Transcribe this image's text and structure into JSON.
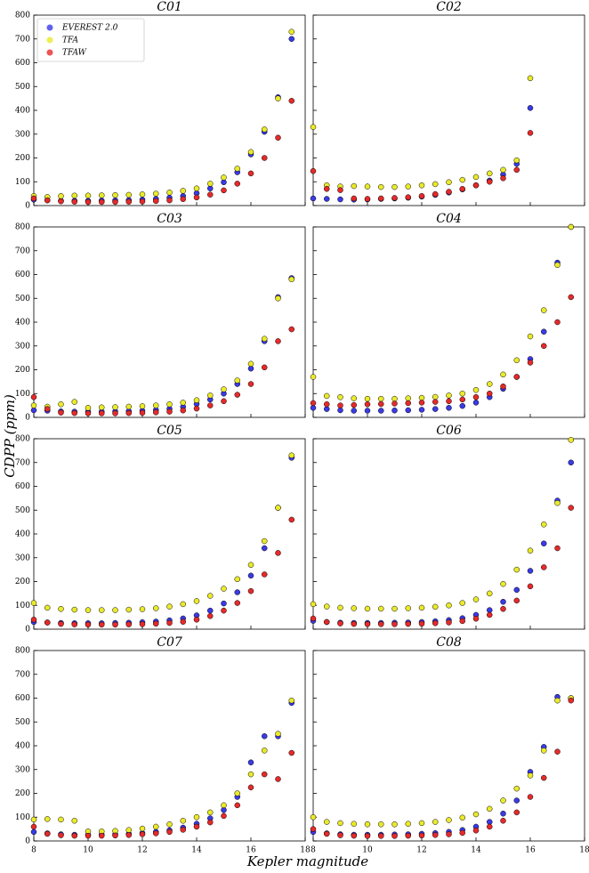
{
  "chart_data": [
    {
      "type": "scatter",
      "title": "C01",
      "xlim": [
        8,
        18
      ],
      "ylim": [
        0,
        800
      ],
      "x": [
        8,
        8.5,
        9,
        9.5,
        10,
        10.5,
        11,
        11.5,
        12,
        12.5,
        13,
        13.5,
        14,
        14.5,
        15,
        15.5,
        16,
        16.5,
        17,
        17.5
      ],
      "series": [
        {
          "name": "EVEREST 2.0",
          "color": "#3a3ae6",
          "values": [
            25,
            22,
            20,
            20,
            20,
            21,
            22,
            23,
            25,
            28,
            33,
            40,
            52,
            72,
            98,
            140,
            215,
            310,
            455,
            700
          ]
        },
        {
          "name": "TFA",
          "color": "#eaea2a",
          "values": [
            40,
            36,
            40,
            42,
            42,
            43,
            44,
            45,
            47,
            50,
            55,
            62,
            72,
            92,
            118,
            155,
            225,
            320,
            450,
            730
          ]
        },
        {
          "name": "TFAW",
          "color": "#e62a2a",
          "values": [
            30,
            22,
            18,
            16,
            15,
            15,
            15,
            16,
            17,
            19,
            22,
            27,
            34,
            46,
            64,
            92,
            135,
            200,
            285,
            440
          ]
        }
      ]
    },
    {
      "type": "scatter",
      "title": "C02",
      "xlim": [
        8,
        18
      ],
      "ylim": [
        0,
        800
      ],
      "x": [
        8,
        8.5,
        9,
        9.5,
        10,
        10.5,
        11,
        11.5,
        12,
        12.5,
        13,
        13.5,
        14,
        14.5,
        15,
        15.5,
        16
      ],
      "series": [
        {
          "color": "#3a3ae6",
          "values": [
            30,
            28,
            26,
            25,
            26,
            28,
            30,
            33,
            38,
            45,
            55,
            68,
            85,
            105,
            130,
            175,
            410
          ]
        },
        {
          "color": "#eaea2a",
          "values": [
            330,
            85,
            80,
            82,
            80,
            78,
            78,
            80,
            85,
            90,
            98,
            108,
            120,
            135,
            150,
            190,
            535
          ]
        },
        {
          "color": "#e62a2a",
          "values": [
            145,
            70,
            65,
            30,
            28,
            30,
            32,
            35,
            40,
            48,
            58,
            70,
            85,
            100,
            115,
            150,
            305
          ]
        }
      ]
    },
    {
      "type": "scatter",
      "title": "C03",
      "xlim": [
        8,
        18
      ],
      "ylim": [
        0,
        800
      ],
      "x": [
        8,
        8.5,
        9,
        9.5,
        10,
        10.5,
        11,
        11.5,
        12,
        12.5,
        13,
        13.5,
        14,
        14.5,
        15,
        15.5,
        16,
        16.5,
        17,
        17.5
      ],
      "series": [
        {
          "color": "#3a3ae6",
          "values": [
            30,
            28,
            25,
            24,
            24,
            24,
            25,
            26,
            28,
            31,
            36,
            44,
            56,
            75,
            100,
            140,
            205,
            320,
            505,
            585
          ]
        },
        {
          "color": "#eaea2a",
          "values": [
            50,
            45,
            55,
            65,
            40,
            42,
            43,
            45,
            47,
            50,
            55,
            62,
            72,
            92,
            118,
            155,
            225,
            330,
            500,
            580
          ]
        },
        {
          "color": "#e62a2a",
          "values": [
            85,
            35,
            20,
            18,
            17,
            17,
            17,
            18,
            19,
            21,
            24,
            29,
            37,
            50,
            68,
            95,
            140,
            210,
            320,
            370
          ]
        }
      ]
    },
    {
      "type": "scatter",
      "title": "C04",
      "xlim": [
        8,
        18
      ],
      "ylim": [
        0,
        800
      ],
      "x": [
        8,
        8.5,
        9,
        9.5,
        10,
        10.5,
        11,
        11.5,
        12,
        12.5,
        13,
        13.5,
        14,
        14.5,
        15,
        15.5,
        16,
        16.5,
        17,
        17.5
      ],
      "series": [
        {
          "color": "#3a3ae6",
          "values": [
            40,
            35,
            30,
            28,
            28,
            28,
            29,
            30,
            32,
            35,
            40,
            48,
            62,
            85,
            120,
            170,
            245,
            360,
            650,
            800
          ]
        },
        {
          "color": "#eaea2a",
          "values": [
            170,
            90,
            85,
            80,
            78,
            78,
            78,
            80,
            82,
            86,
            92,
            100,
            115,
            140,
            180,
            240,
            340,
            450,
            640,
            800
          ]
        },
        {
          "color": "#e62a2a",
          "values": [
            60,
            55,
            50,
            52,
            55,
            56,
            58,
            60,
            62,
            65,
            68,
            75,
            85,
            100,
            130,
            170,
            230,
            300,
            400,
            505
          ]
        }
      ]
    },
    {
      "type": "scatter",
      "title": "C05",
      "xlim": [
        8,
        18
      ],
      "ylim": [
        0,
        800
      ],
      "x": [
        8,
        8.5,
        9,
        9.5,
        10,
        10.5,
        11,
        11.5,
        12,
        12.5,
        13,
        13.5,
        14,
        14.5,
        15,
        15.5,
        16,
        16.5,
        17,
        17.5
      ],
      "series": [
        {
          "color": "#3a3ae6",
          "values": [
            30,
            28,
            26,
            25,
            25,
            25,
            26,
            27,
            29,
            32,
            37,
            45,
            58,
            78,
            108,
            155,
            225,
            340,
            510,
            720
          ]
        },
        {
          "color": "#eaea2a",
          "values": [
            110,
            90,
            85,
            82,
            80,
            80,
            80,
            82,
            84,
            88,
            95,
            105,
            118,
            140,
            170,
            210,
            270,
            370,
            510,
            730
          ]
        },
        {
          "color": "#e62a2a",
          "values": [
            40,
            28,
            22,
            20,
            19,
            19,
            19,
            20,
            21,
            23,
            26,
            31,
            40,
            55,
            78,
            110,
            160,
            230,
            320,
            460
          ]
        }
      ]
    },
    {
      "type": "scatter",
      "title": "C06",
      "xlim": [
        8,
        18
      ],
      "ylim": [
        0,
        800
      ],
      "x": [
        8,
        8.5,
        9,
        9.5,
        10,
        10.5,
        11,
        11.5,
        12,
        12.5,
        13,
        13.5,
        14,
        14.5,
        15,
        15.5,
        16,
        16.5,
        17,
        17.5
      ],
      "series": [
        {
          "color": "#3a3ae6",
          "values": [
            35,
            30,
            27,
            26,
            26,
            26,
            27,
            28,
            30,
            33,
            38,
            46,
            60,
            80,
            115,
            165,
            245,
            360,
            540,
            700
          ]
        },
        {
          "color": "#eaea2a",
          "values": [
            105,
            95,
            90,
            88,
            86,
            86,
            86,
            88,
            90,
            94,
            100,
            110,
            125,
            150,
            190,
            250,
            330,
            440,
            530,
            795
          ]
        },
        {
          "color": "#e62a2a",
          "values": [
            45,
            30,
            24,
            22,
            21,
            21,
            21,
            22,
            23,
            25,
            28,
            34,
            44,
            60,
            85,
            120,
            180,
            260,
            340,
            510
          ]
        }
      ]
    },
    {
      "type": "scatter",
      "title": "C07",
      "xlim": [
        8,
        18
      ],
      "ylim": [
        0,
        800
      ],
      "xticks": [
        8,
        10,
        12,
        14,
        16,
        18
      ],
      "xlabel": "Kepler magnitude",
      "x": [
        8,
        8.5,
        9,
        9.5,
        10,
        10.5,
        11,
        11.5,
        12,
        12.5,
        13,
        13.5,
        14,
        14.5,
        15,
        15.5,
        16,
        16.5,
        17,
        17.5
      ],
      "series": [
        {
          "color": "#3a3ae6",
          "values": [
            38,
            32,
            28,
            26,
            26,
            27,
            28,
            30,
            33,
            38,
            45,
            56,
            72,
            95,
            130,
            185,
            330,
            440,
            440,
            580
          ]
        },
        {
          "color": "#eaea2a",
          "values": [
            90,
            92,
            90,
            85,
            40,
            40,
            42,
            46,
            52,
            60,
            70,
            85,
            100,
            120,
            150,
            200,
            280,
            380,
            450,
            590
          ]
        },
        {
          "color": "#e62a2a",
          "values": [
            60,
            30,
            24,
            22,
            22,
            22,
            23,
            25,
            28,
            32,
            38,
            47,
            60,
            78,
            105,
            150,
            225,
            280,
            260,
            370
          ]
        }
      ]
    },
    {
      "type": "scatter",
      "title": "C08",
      "xlim": [
        8,
        18
      ],
      "ylim": [
        0,
        800
      ],
      "xticks": [
        8,
        10,
        12,
        14,
        16,
        18
      ],
      "x": [
        8,
        8.5,
        9,
        9.5,
        10,
        10.5,
        11,
        11.5,
        12,
        12.5,
        13,
        13.5,
        14,
        14.5,
        15,
        15.5,
        16,
        16.5,
        17,
        17.5
      ],
      "series": [
        {
          "color": "#3a3ae6",
          "values": [
            38,
            32,
            28,
            26,
            26,
            26,
            27,
            28,
            30,
            33,
            38,
            46,
            60,
            80,
            115,
            170,
            290,
            395,
            605,
            600
          ]
        },
        {
          "color": "#eaea2a",
          "values": [
            100,
            80,
            75,
            72,
            70,
            70,
            70,
            72,
            75,
            80,
            88,
            98,
            112,
            135,
            170,
            220,
            275,
            380,
            590,
            600
          ]
        },
        {
          "color": "#e62a2a",
          "values": [
            50,
            30,
            24,
            22,
            21,
            21,
            21,
            22,
            23,
            25,
            28,
            34,
            44,
            60,
            85,
            120,
            185,
            265,
            375,
            590
          ]
        }
      ]
    }
  ],
  "shared_y": {
    "yticks": [
      0,
      100,
      200,
      300,
      400,
      500,
      600,
      700,
      800
    ],
    "ylabel": "CDPP (ppm)"
  }
}
